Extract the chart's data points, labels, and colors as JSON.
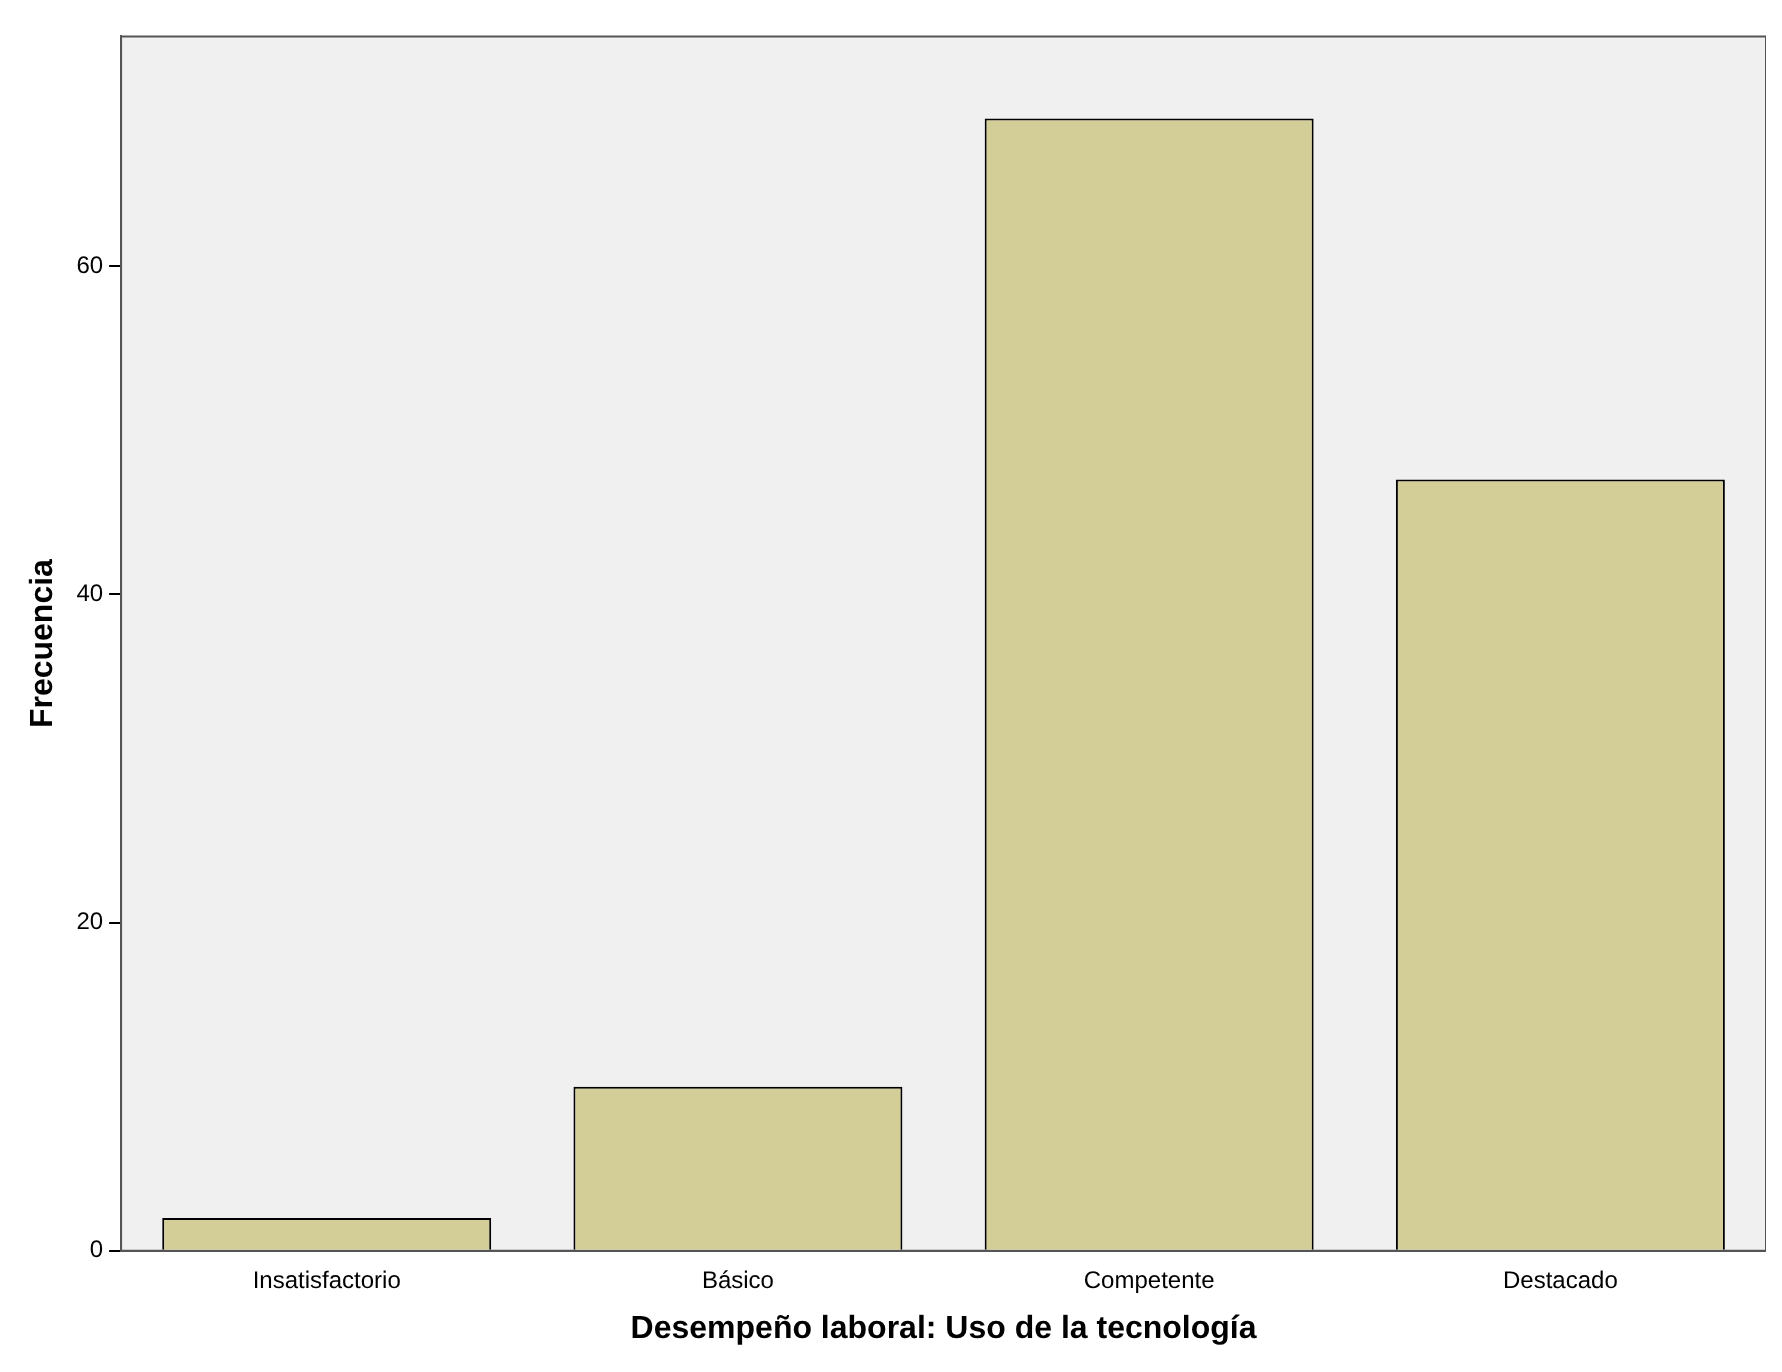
{
  "chart_data": {
    "type": "bar",
    "xlabel": "Desempeño laboral: Uso de la tecnología",
    "ylabel": "Frecuencia",
    "categories": [
      "Insatisfactorio",
      "Básico",
      "Competente",
      "Destacado"
    ],
    "values": [
      2,
      10,
      69,
      47
    ],
    "color": "#d3ce97",
    "ylim": [
      0,
      74
    ],
    "yticks": [
      0,
      20,
      40,
      60
    ],
    "grid": false
  }
}
